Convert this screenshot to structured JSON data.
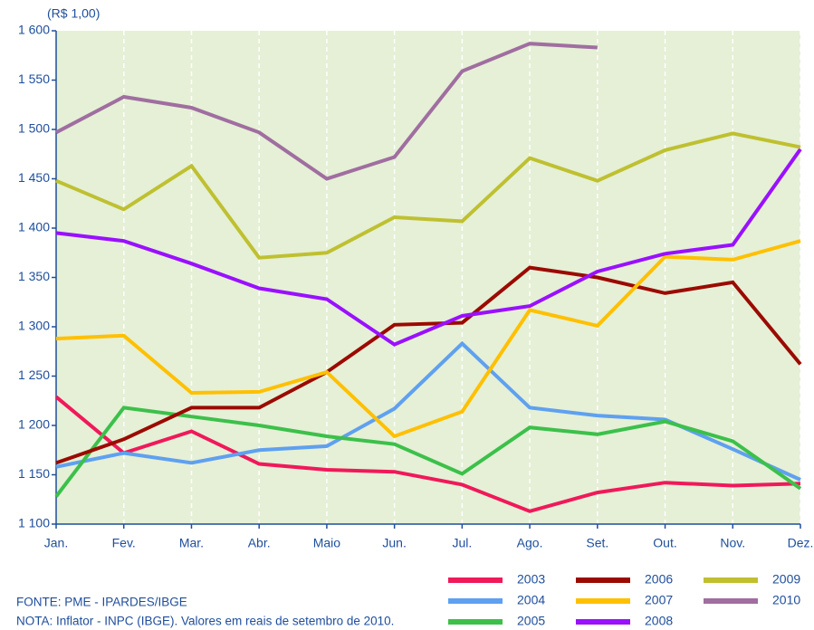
{
  "chart_data": {
    "type": "line",
    "y_label": "(R$ 1,00)",
    "categories": [
      "Jan.",
      "Fev.",
      "Mar.",
      "Abr.",
      "Maio",
      "Jun.",
      "Jul.",
      "Ago.",
      "Set.",
      "Out.",
      "Nov.",
      "Dez."
    ],
    "series": [
      {
        "name": "2003",
        "color": "#f0195a",
        "values": [
          1229,
          1172,
          1194,
          1161,
          1155,
          1153,
          1140,
          1113,
          1132,
          1142,
          1139,
          1141
        ]
      },
      {
        "name": "2004",
        "color": "#5fa0f0",
        "values": [
          1158,
          1172,
          1162,
          1175,
          1179,
          1217,
          1283,
          1218,
          1210,
          1206,
          1176,
          1145
        ]
      },
      {
        "name": "2005",
        "color": "#3cc04a",
        "values": [
          1128,
          1218,
          1209,
          1200,
          1189,
          1181,
          1151,
          1198,
          1191,
          1204,
          1184,
          1136
        ]
      },
      {
        "name": "2006",
        "color": "#9b0a00",
        "values": [
          1162,
          1186,
          1218,
          1218,
          1254,
          1302,
          1304,
          1360,
          1350,
          1334,
          1345,
          1262
        ]
      },
      {
        "name": "2007",
        "color": "#ffc000",
        "values": [
          1288,
          1291,
          1233,
          1234,
          1254,
          1189,
          1214,
          1317,
          1301,
          1371,
          1368,
          1387
        ]
      },
      {
        "name": "2008",
        "color": "#9a10ff",
        "values": [
          1395,
          1387,
          1364,
          1339,
          1328,
          1282,
          1311,
          1321,
          1356,
          1374,
          1383,
          1480
        ]
      },
      {
        "name": "2009",
        "color": "#bfc030",
        "values": [
          1448,
          1419,
          1463,
          1370,
          1375,
          1411,
          1407,
          1471,
          1448,
          1479,
          1496,
          1482
        ]
      },
      {
        "name": "2010",
        "color": "#a06ea0",
        "values": [
          1497,
          1533,
          1522,
          1497,
          1450,
          1472,
          1559,
          1587,
          1583,
          null,
          null,
          null
        ]
      }
    ],
    "ylim": [
      1100,
      1600
    ],
    "yticks": [
      {
        "value": 1100,
        "label": "1 100"
      },
      {
        "value": 1150,
        "label": "1 150"
      },
      {
        "value": 1200,
        "label": "1 200"
      },
      {
        "value": 1250,
        "label": "1 250"
      },
      {
        "value": 1300,
        "label": "1 300"
      },
      {
        "value": 1350,
        "label": "1 350"
      },
      {
        "value": 1400,
        "label": "1 400"
      },
      {
        "value": 1450,
        "label": "1 450"
      },
      {
        "value": 1500,
        "label": "1 500"
      },
      {
        "value": 1550,
        "label": "1 550"
      },
      {
        "value": 1600,
        "label": "1 600"
      }
    ],
    "source": "FONTE: PME - IPARDES/IBGE",
    "note": "NOTA: Inflator - INPC (IBGE). Valores em reais de setembro de 2010."
  }
}
